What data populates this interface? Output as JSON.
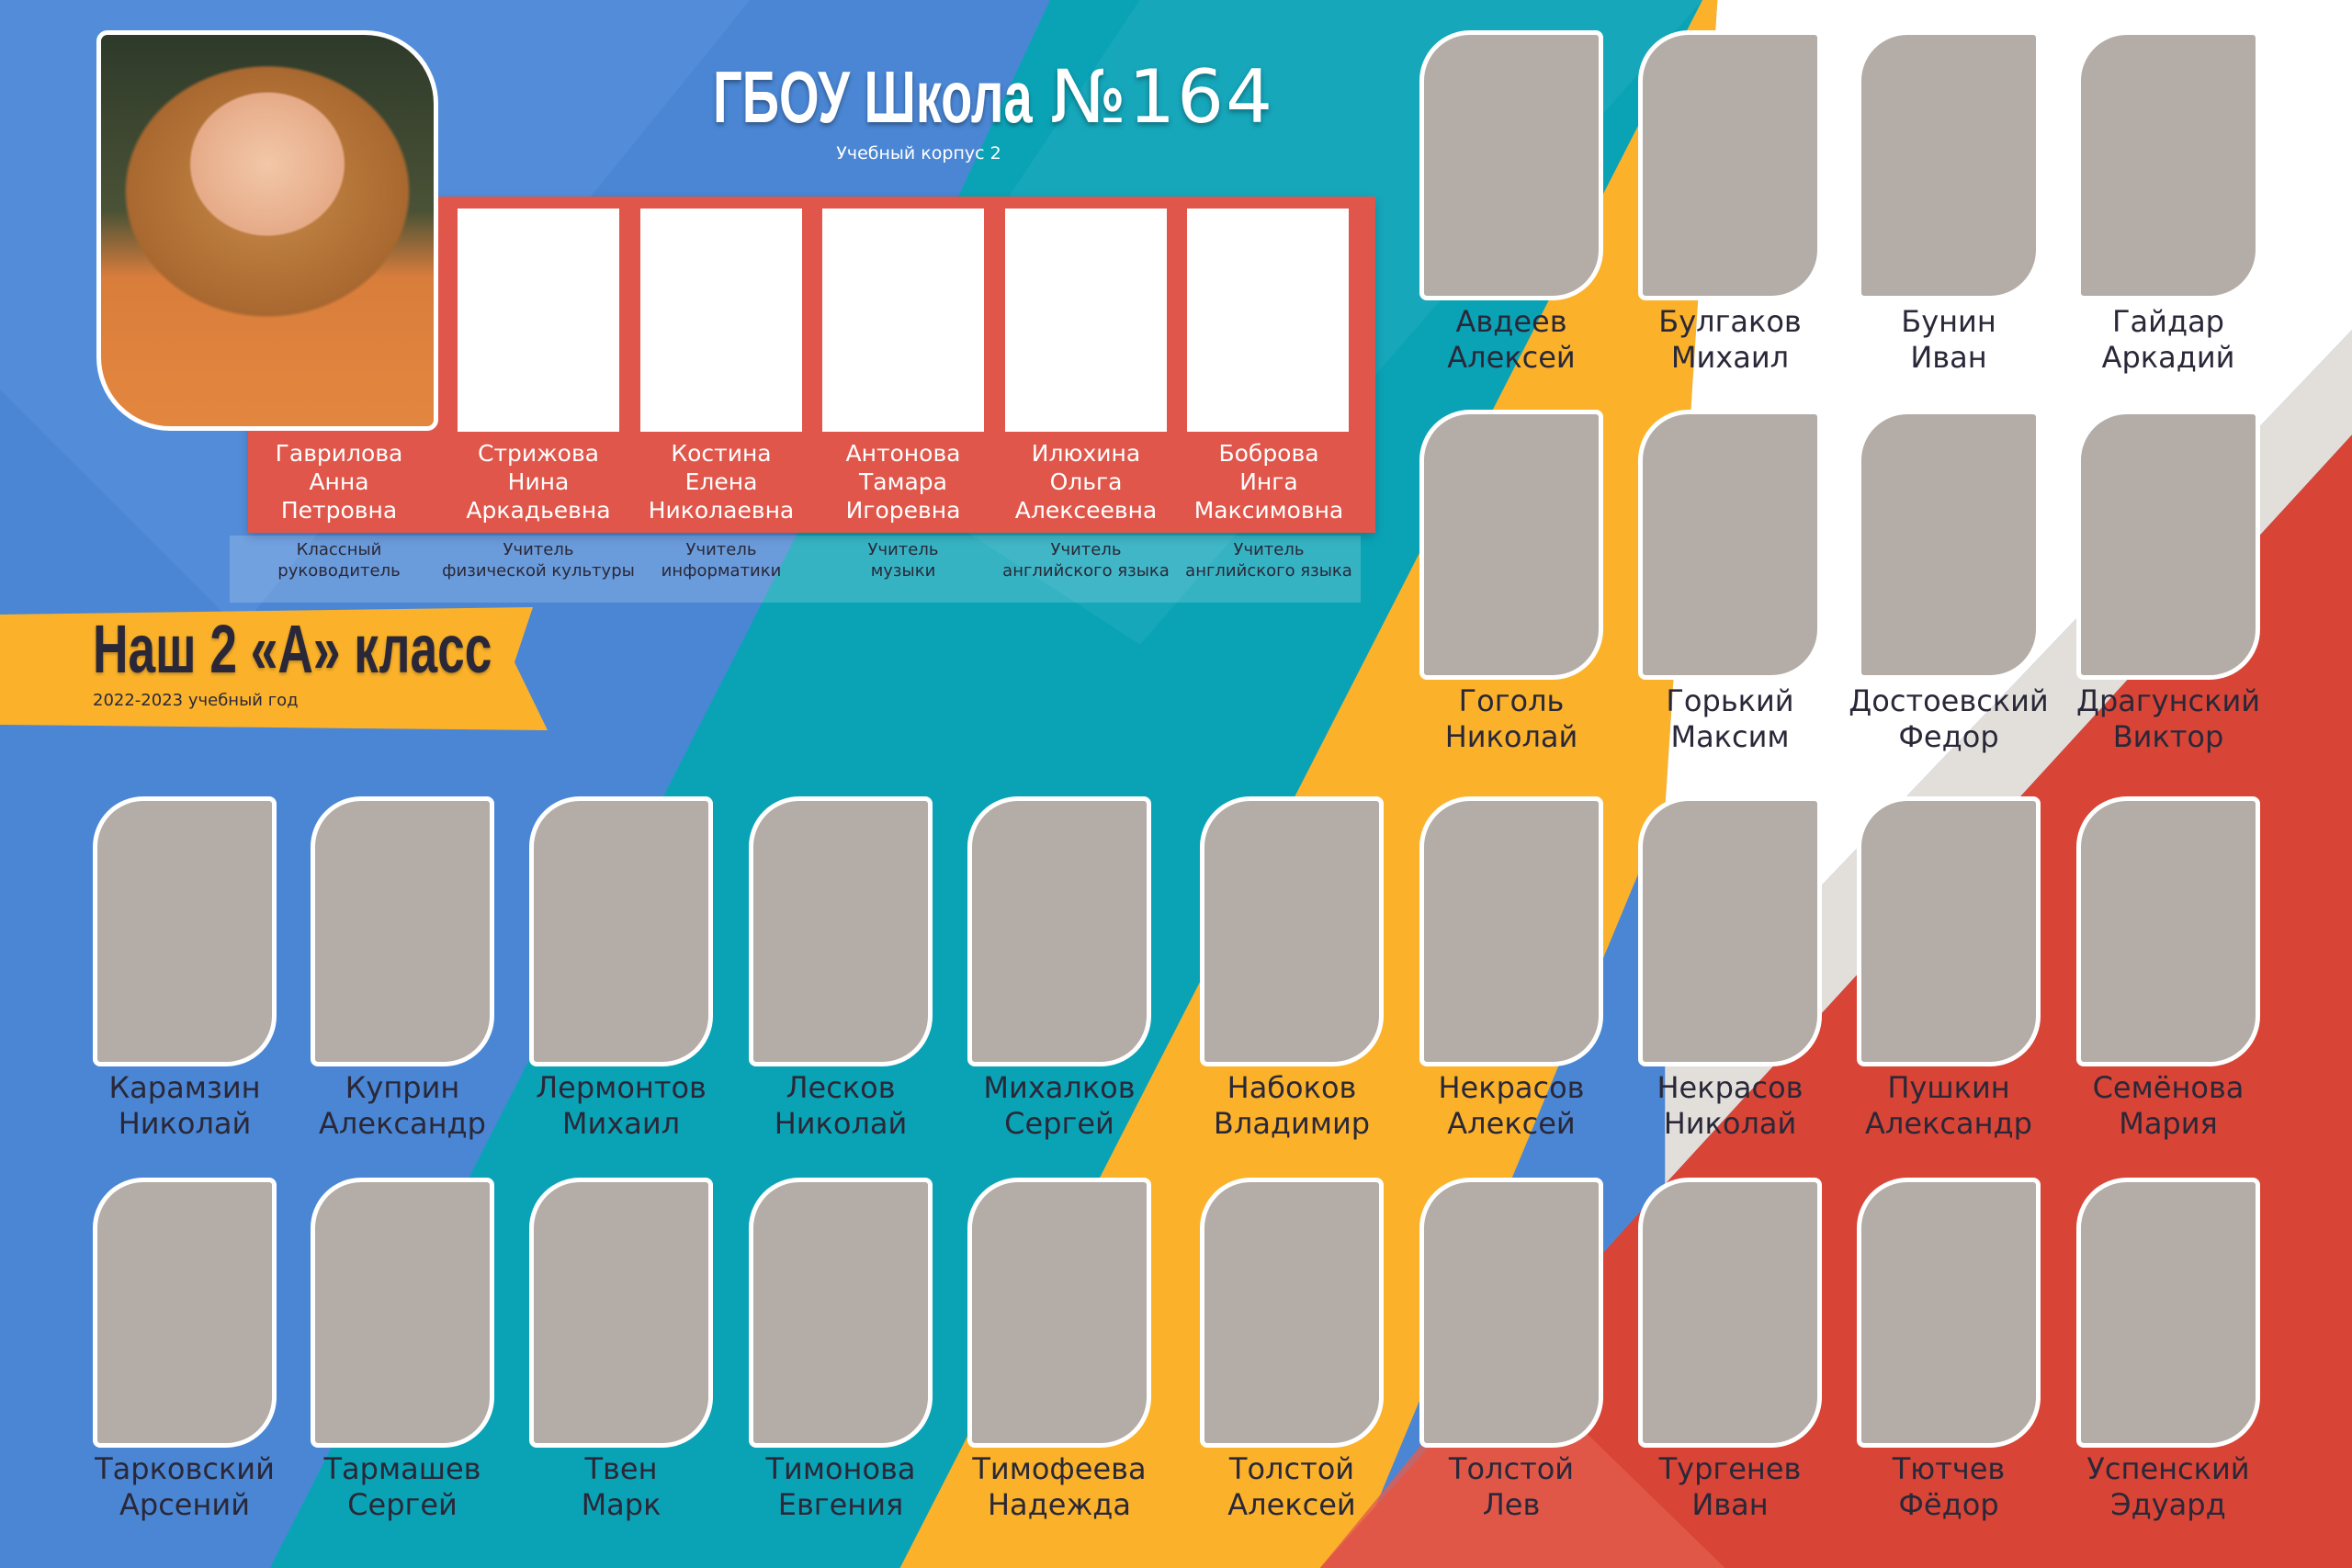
{
  "header": {
    "school_bold": "ГБОУ Школа",
    "school_number": "№164",
    "subtitle": "Учебный корпус 2"
  },
  "banner": {
    "title": "Наш 2 «А» класс",
    "year": "2022-2023 учебный год"
  },
  "colors": {
    "blue": "#4a86d4",
    "teal": "#0aa3b6",
    "yellow": "#fbb22a",
    "red": "#d84436",
    "panel_red": "#e0564a",
    "photo_placeholder": "#b3aca7"
  },
  "teachers": [
    {
      "name": [
        "Гаврилова",
        "Анна",
        "Петровна"
      ],
      "role": [
        "Классный",
        "руководитель"
      ]
    },
    {
      "name": [
        "Стрижова",
        "Нина",
        "Аркадьевна"
      ],
      "role": [
        "Учитель",
        "физической культуры"
      ]
    },
    {
      "name": [
        "Костина",
        "Елена",
        "Николаевна"
      ],
      "role": [
        "Учитель",
        "информатики"
      ]
    },
    {
      "name": [
        "Антонова",
        "Тамара",
        "Игоревна"
      ],
      "role": [
        "Учитель",
        "музыки"
      ]
    },
    {
      "name": [
        "Илюхина",
        "Ольга",
        "Алексеевна"
      ],
      "role": [
        "Учитель",
        "английского языка"
      ]
    },
    {
      "name": [
        "Боброва",
        "Инга",
        "Максимовна"
      ],
      "role": [
        "Учитель",
        "английского языка"
      ]
    }
  ],
  "students": [
    [
      "Авдеев",
      "Алексей"
    ],
    [
      "Булгаков",
      "Михаил"
    ],
    [
      "Бунин",
      "Иван"
    ],
    [
      "Гайдар",
      "Аркадий"
    ],
    [
      "Гоголь",
      "Николай"
    ],
    [
      "Горький",
      "Максим"
    ],
    [
      "Достоевский",
      "Федор"
    ],
    [
      "Драгунский",
      "Виктор"
    ],
    [
      "Карамзин",
      "Николай"
    ],
    [
      "Куприн",
      "Александр"
    ],
    [
      "Лермонтов",
      "Михаил"
    ],
    [
      "Лесков",
      "Николай"
    ],
    [
      "Михалков",
      "Сергей"
    ],
    [
      "Набоков",
      "Владимир"
    ],
    [
      "Некрасов",
      "Алексей"
    ],
    [
      "Некрасов",
      "Николай"
    ],
    [
      "Пушкин",
      "Александр"
    ],
    [
      "Семёнова",
      "Мария"
    ],
    [
      "Тарковский",
      "Арсений"
    ],
    [
      "Тармашев",
      "Сергей"
    ],
    [
      "Твен",
      "Марк"
    ],
    [
      "Тимонова",
      "Евгения"
    ],
    [
      "Тимофеева",
      "Надежда"
    ],
    [
      "Толстой",
      "Алексей"
    ],
    [
      "Толстой",
      "Лев"
    ],
    [
      "Тургенев",
      "Иван"
    ],
    [
      "Тютчев",
      "Фёдор"
    ],
    [
      "Успенский",
      "Эдуард"
    ]
  ]
}
